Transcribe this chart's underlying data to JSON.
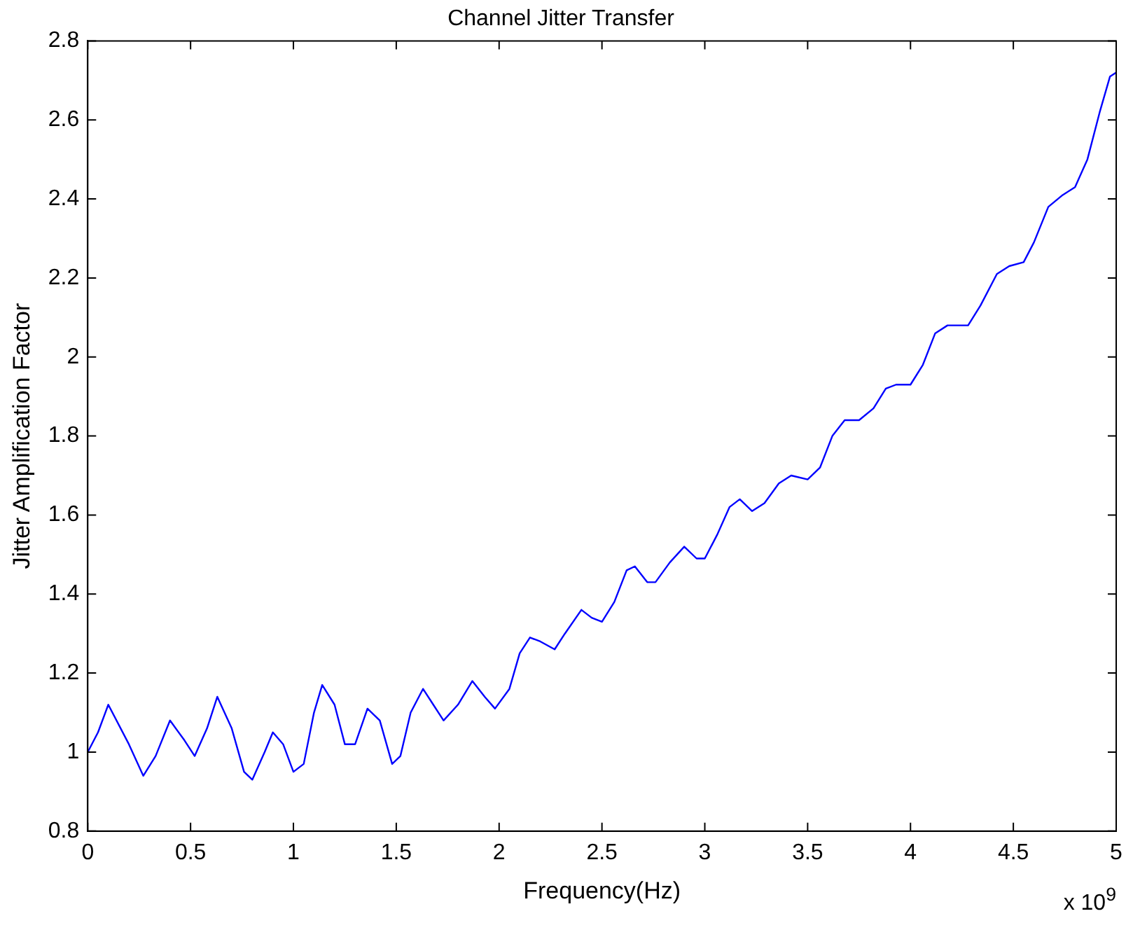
{
  "chart_data": {
    "type": "line",
    "title": "Channel Jitter Transfer",
    "xlabel": "Frequency(Hz)",
    "ylabel": "Jitter Amplification Factor",
    "annotations": [
      "x 10$^{9}$"
    ],
    "x": [
      0,
      0.05,
      0.1,
      0.2,
      0.27,
      0.33,
      0.4,
      0.47,
      0.52,
      0.58,
      0.63,
      0.7,
      0.76,
      0.8,
      0.86,
      0.9,
      0.95,
      1.0,
      1.05,
      1.1,
      1.14,
      1.2,
      1.25,
      1.3,
      1.36,
      1.42,
      1.48,
      1.52,
      1.57,
      1.63,
      1.68,
      1.73,
      1.8,
      1.87,
      1.93,
      1.98,
      2.05,
      2.1,
      2.15,
      2.2,
      2.27,
      2.32,
      2.4,
      2.45,
      2.5,
      2.56,
      2.62,
      2.66,
      2.72,
      2.76,
      2.83,
      2.9,
      2.96,
      3.0,
      3.06,
      3.12,
      3.17,
      3.23,
      3.29,
      3.36,
      3.42,
      3.5,
      3.56,
      3.62,
      3.68,
      3.75,
      3.82,
      3.88,
      3.93,
      4.0,
      4.06,
      4.12,
      4.18,
      4.28,
      4.34,
      4.42,
      4.48,
      4.55,
      4.6,
      4.67,
      4.74,
      4.8,
      4.86,
      4.92,
      4.97,
      5.0
    ],
    "series": [
      {
        "color": "#0000ff",
        "values": [
          1.0,
          1.05,
          1.12,
          1.02,
          0.94,
          0.99,
          1.08,
          1.03,
          0.99,
          1.06,
          1.14,
          1.06,
          0.95,
          0.93,
          1.0,
          1.05,
          1.02,
          0.95,
          0.97,
          1.1,
          1.17,
          1.12,
          1.02,
          1.02,
          1.11,
          1.08,
          0.97,
          0.99,
          1.1,
          1.16,
          1.12,
          1.08,
          1.12,
          1.18,
          1.14,
          1.11,
          1.16,
          1.25,
          1.29,
          1.28,
          1.26,
          1.3,
          1.36,
          1.34,
          1.33,
          1.38,
          1.46,
          1.47,
          1.43,
          1.43,
          1.48,
          1.52,
          1.49,
          1.49,
          1.55,
          1.62,
          1.64,
          1.61,
          1.63,
          1.68,
          1.7,
          1.69,
          1.72,
          1.8,
          1.84,
          1.84,
          1.87,
          1.92,
          1.93,
          1.93,
          1.98,
          2.06,
          2.08,
          2.08,
          2.13,
          2.21,
          2.23,
          2.24,
          2.29,
          2.38,
          2.41,
          2.43,
          2.5,
          2.62,
          2.71,
          2.72
        ]
      }
    ],
    "xlim": [
      0,
      5
    ],
    "xticks": [
      0,
      0.5,
      1,
      1.5,
      2,
      2.5,
      3,
      3.5,
      4,
      4.5,
      5
    ],
    "ylim": [
      0.8,
      2.8
    ],
    "yticks": [
      0.8,
      1,
      1.2,
      1.4,
      1.6,
      1.8,
      2,
      2.2,
      2.4,
      2.6,
      2.8
    ],
    "grid": false,
    "legend": false,
    "marker": "none",
    "line_style": "solid"
  }
}
